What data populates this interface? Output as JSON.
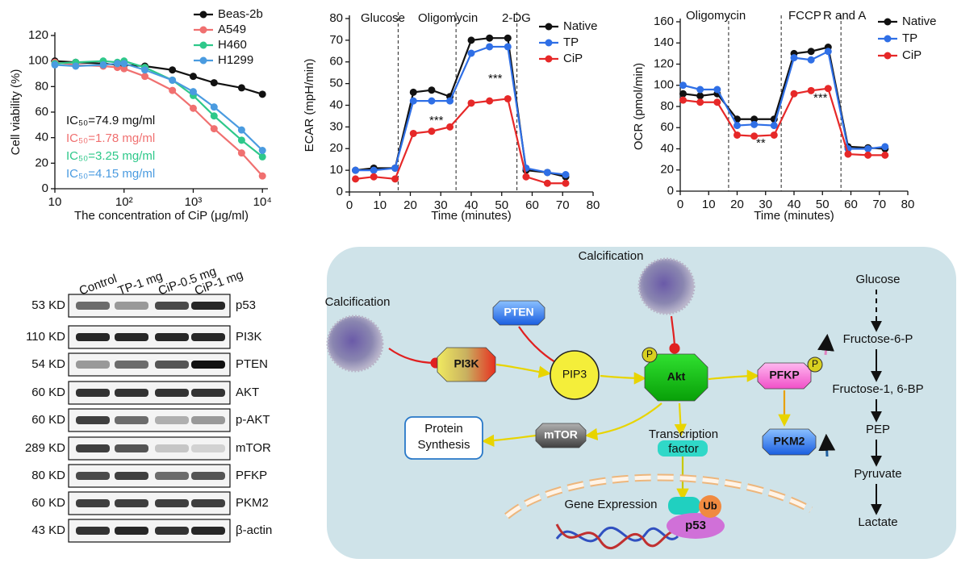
{
  "chart_data": [
    {
      "type": "line",
      "xscale": "log",
      "ylabel": "Cell viability (%)",
      "xlabel": "The concentration of CiP (μg/ml)",
      "x": [
        10,
        20,
        50,
        80,
        100,
        200,
        500,
        1000,
        2000,
        5000,
        10000
      ],
      "series": [
        {
          "name": "Beas-2b",
          "color": "#111111",
          "values": [
            100,
            99,
            98,
            97,
            97,
            96,
            93,
            88,
            83,
            79,
            74
          ]
        },
        {
          "name": "A549",
          "color": "#f07070",
          "values": [
            99,
            97,
            96,
            95,
            94,
            88,
            77,
            63,
            47,
            28,
            10
          ]
        },
        {
          "name": "H460",
          "color": "#2ec88a",
          "values": [
            98,
            99,
            100,
            99,
            100,
            95,
            85,
            73,
            57,
            38,
            25
          ]
        },
        {
          "name": "H1299",
          "color": "#4a9be0",
          "values": [
            97,
            96,
            97,
            98,
            98,
            93,
            85,
            76,
            64,
            46,
            30
          ]
        }
      ],
      "annotations": [
        "IC₅₀=74.9 mg/ml",
        "IC₅₀=1.78 mg/ml",
        "IC₅₀=3.25 mg/ml",
        "IC₅₀=4.15 mg/ml"
      ],
      "xlim": [
        10,
        12000
      ],
      "xticks": [
        10,
        {
          "value": 100,
          "label": "10²"
        },
        {
          "value": 1000,
          "label": "10³"
        },
        {
          "value": 10000,
          "label": "10⁴"
        }
      ],
      "ylim": [
        0,
        120
      ],
      "yticks": [
        0,
        20,
        40,
        60,
        80,
        100,
        120
      ],
      "grid": false,
      "legend": "top-right"
    },
    {
      "type": "line",
      "ylabel": "ECAR (mpH/min)",
      "xlabel": "Time (minutes)",
      "x": [
        2,
        8,
        15,
        21,
        27,
        33,
        40,
        46,
        52,
        58,
        65,
        71
      ],
      "series": [
        {
          "name": "Native",
          "color": "#111111",
          "values": [
            10,
            11,
            11,
            46,
            47,
            44,
            70,
            71,
            71,
            10,
            9,
            7
          ]
        },
        {
          "name": "TP",
          "color": "#2f6fe6",
          "values": [
            10,
            10,
            11,
            42,
            42,
            42,
            64,
            67,
            67,
            11,
            9,
            8
          ]
        },
        {
          "name": "CiP",
          "color": "#e62828",
          "values": [
            6,
            7,
            6,
            27,
            28,
            30,
            41,
            42,
            43,
            7,
            4,
            4
          ]
        }
      ],
      "vlines": [
        16,
        35,
        55
      ],
      "annotations": [
        "Glucose",
        "Oligomycin",
        "2-DG",
        "***",
        "***"
      ],
      "xlim": [
        0,
        80
      ],
      "xticks": [
        0,
        10,
        20,
        30,
        40,
        50,
        60,
        70,
        80
      ],
      "ylim": [
        0,
        80
      ],
      "yticks": [
        0,
        10,
        20,
        30,
        40,
        50,
        60,
        70,
        80
      ],
      "grid": false,
      "legend": "top-right"
    },
    {
      "type": "line",
      "ylabel": "OCR (pmol/min)",
      "xlabel": "Time (minutes)",
      "x": [
        1,
        7,
        13,
        20,
        26,
        33,
        40,
        46,
        52,
        59,
        66,
        72
      ],
      "series": [
        {
          "name": "Native",
          "color": "#111111",
          "values": [
            92,
            90,
            92,
            68,
            68,
            68,
            130,
            132,
            136,
            42,
            41,
            40
          ]
        },
        {
          "name": "TP",
          "color": "#2f6fe6",
          "values": [
            100,
            96,
            96,
            62,
            63,
            62,
            126,
            124,
            132,
            40,
            40,
            42
          ]
        },
        {
          "name": "CiP",
          "color": "#e62828",
          "values": [
            86,
            84,
            84,
            53,
            52,
            53,
            92,
            95,
            97,
            35,
            34,
            34
          ]
        }
      ],
      "vlines": [
        17,
        35.5,
        56.5
      ],
      "annotations": [
        "Oligomycin",
        "FCCP",
        "R and A",
        "**",
        "***"
      ],
      "xlim": [
        0,
        80
      ],
      "xticks": [
        0,
        10,
        20,
        30,
        40,
        50,
        60,
        70,
        80
      ],
      "ylim": [
        0,
        160
      ],
      "yticks": [
        0,
        20,
        40,
        60,
        80,
        100,
        120,
        140,
        160
      ],
      "grid": false,
      "legend": "top-right"
    }
  ],
  "blot": {
    "columns": [
      "Control",
      "TP-1 mg",
      "CiP-0.5 mg",
      "CiP-1 mg"
    ],
    "rows": [
      {
        "size": "53 KD",
        "protein": "p53"
      },
      {
        "size": "110 KD",
        "protein": "PI3K"
      },
      {
        "size": "54 KD",
        "protein": "PTEN"
      },
      {
        "size": "60 KD",
        "protein": "AKT"
      },
      {
        "size": "60 KD",
        "protein": "p-AKT"
      },
      {
        "size": "289 KD",
        "protein": "mTOR"
      },
      {
        "size": "80 KD",
        "protein": "PFKP"
      },
      {
        "size": "60 KD",
        "protein": "PKM2"
      },
      {
        "size": "43 KD",
        "protein": "β-actin"
      }
    ]
  },
  "diagram": {
    "calcification_left": "Calcification",
    "calcification_top": "Calcification",
    "pten": "PTEN",
    "pi3k": "PI3K",
    "pip3": "PIP3",
    "akt": "Akt",
    "akt_p": "P",
    "pfkp_p": "P",
    "pfkp": "PFKP",
    "pkm2": "PKM2",
    "mtor": "mTOR",
    "protein_synthesis": [
      "Protein",
      "Synthesis"
    ],
    "transcription_factor": [
      "Transcription",
      "factor"
    ],
    "gene_expression": "Gene Expression",
    "ub": "Ub",
    "p53": "p53",
    "glycolysis": [
      "Glucose",
      "Fructose-6-P",
      "Fructose-1, 6-BP",
      "PEP",
      "Pyruvate",
      "Lactate"
    ]
  }
}
